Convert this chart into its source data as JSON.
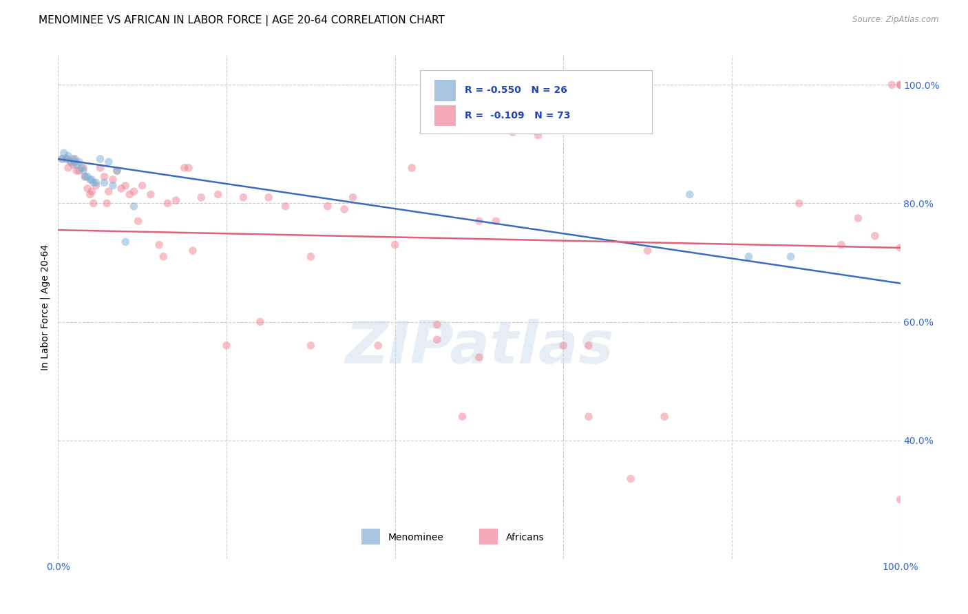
{
  "title": "MENOMINEE VS AFRICAN IN LABOR FORCE | AGE 20-64 CORRELATION CHART",
  "source": "Source: ZipAtlas.com",
  "ylabel": "In Labor Force | Age 20-64",
  "xlim": [
    0.0,
    1.0
  ],
  "ylim": [
    0.2,
    1.05
  ],
  "watermark": "ZIPatlas",
  "menominee_color": "#7aafd4",
  "africans_color": "#f08090",
  "menominee_legend_color": "#a8c4e0",
  "africans_legend_color": "#f4a8b8",
  "menominee_x": [
    0.005,
    0.007,
    0.01,
    0.012,
    0.015,
    0.018,
    0.02,
    0.022,
    0.025,
    0.028,
    0.03,
    0.032,
    0.035,
    0.038,
    0.04,
    0.042,
    0.045,
    0.05,
    0.055,
    0.06,
    0.065,
    0.07,
    0.08,
    0.09,
    0.75,
    0.82,
    0.87
  ],
  "menominee_y": [
    0.875,
    0.885,
    0.875,
    0.88,
    0.87,
    0.875,
    0.87,
    0.865,
    0.87,
    0.86,
    0.855,
    0.845,
    0.845,
    0.84,
    0.84,
    0.835,
    0.835,
    0.875,
    0.835,
    0.87,
    0.83,
    0.855,
    0.735,
    0.795,
    0.815,
    0.71,
    0.71
  ],
  "africans_x": [
    0.005,
    0.01,
    0.012,
    0.015,
    0.018,
    0.02,
    0.022,
    0.025,
    0.03,
    0.032,
    0.035,
    0.038,
    0.04,
    0.042,
    0.045,
    0.05,
    0.055,
    0.058,
    0.06,
    0.065,
    0.07,
    0.075,
    0.08,
    0.085,
    0.09,
    0.095,
    0.1,
    0.11,
    0.12,
    0.125,
    0.13,
    0.14,
    0.15,
    0.155,
    0.16,
    0.17,
    0.19,
    0.2,
    0.22,
    0.24,
    0.25,
    0.27,
    0.3,
    0.32,
    0.35,
    0.38,
    0.4,
    0.42,
    0.45,
    0.48,
    0.5,
    0.52,
    0.54,
    0.57,
    0.6,
    0.63,
    0.68,
    0.72,
    0.3,
    0.34,
    0.45,
    0.5,
    0.63,
    0.7,
    0.88,
    0.93,
    0.95,
    0.97,
    0.99,
    1.0,
    1.0,
    1.0,
    1.0
  ],
  "africans_y": [
    0.875,
    0.875,
    0.86,
    0.87,
    0.865,
    0.875,
    0.855,
    0.855,
    0.86,
    0.845,
    0.825,
    0.815,
    0.82,
    0.8,
    0.83,
    0.86,
    0.845,
    0.8,
    0.82,
    0.84,
    0.855,
    0.825,
    0.83,
    0.815,
    0.82,
    0.77,
    0.83,
    0.815,
    0.73,
    0.71,
    0.8,
    0.805,
    0.86,
    0.86,
    0.72,
    0.81,
    0.815,
    0.56,
    0.81,
    0.6,
    0.81,
    0.795,
    0.71,
    0.795,
    0.81,
    0.56,
    0.73,
    0.86,
    0.57,
    0.44,
    0.77,
    0.77,
    0.92,
    0.915,
    0.56,
    0.44,
    0.335,
    0.44,
    0.56,
    0.79,
    0.595,
    0.54,
    0.56,
    0.72,
    0.8,
    0.73,
    0.775,
    0.745,
    1.0,
    1.0,
    1.0,
    0.725,
    0.3
  ],
  "blue_line_x": [
    0.0,
    1.0
  ],
  "blue_line_y": [
    0.875,
    0.665
  ],
  "pink_line_x": [
    0.0,
    1.0
  ],
  "pink_line_y": [
    0.755,
    0.725
  ],
  "grid_color": "#cccccc",
  "background_color": "#ffffff",
  "title_fontsize": 11,
  "axis_label_fontsize": 10,
  "tick_fontsize": 10,
  "dot_size": 70,
  "dot_alpha": 0.5,
  "line_width": 1.8
}
